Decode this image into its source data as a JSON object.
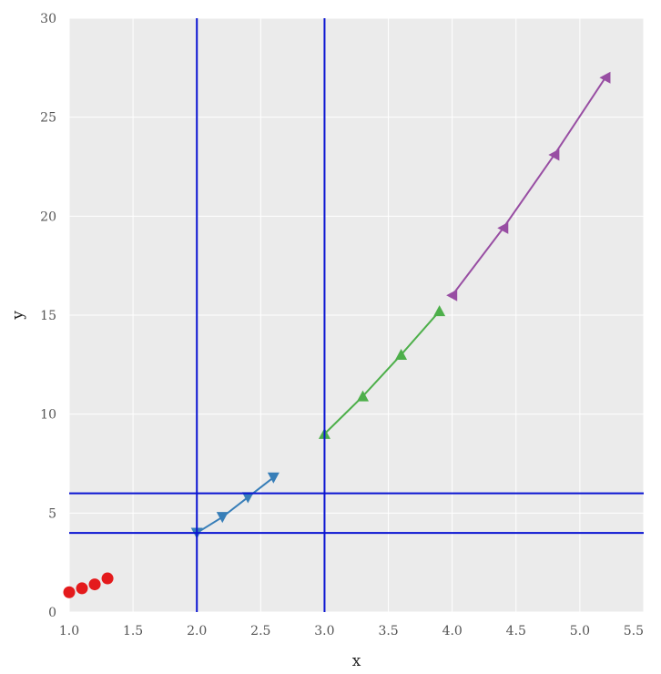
{
  "chart_data": {
    "type": "line",
    "title": "",
    "xlabel": "x",
    "ylabel": "y",
    "xlim": [
      1.0,
      5.5
    ],
    "ylim": [
      0,
      30
    ],
    "xticks": [
      "1.0",
      "1.5",
      "2.0",
      "2.5",
      "3.0",
      "3.5",
      "4.0",
      "4.5",
      "5.0",
      "5.5"
    ],
    "yticks": [
      "0",
      "5",
      "10",
      "15",
      "20",
      "25",
      "30"
    ],
    "grid": true,
    "background": "#ebebeb",
    "series": [
      {
        "color": "#e41a1c",
        "marker": "circle",
        "line": false,
        "x": [
          1.0,
          1.1,
          1.2,
          1.3
        ],
        "y": [
          1.0,
          1.2,
          1.4,
          1.7
        ]
      },
      {
        "color": "#377eb8",
        "marker": "triangle-down",
        "line": true,
        "x": [
          2.0,
          2.2,
          2.4,
          2.6
        ],
        "y": [
          4.0,
          4.8,
          5.8,
          6.8
        ]
      },
      {
        "color": "#4daf4a",
        "marker": "triangle-up",
        "line": true,
        "x": [
          3.0,
          3.3,
          3.6,
          3.9
        ],
        "y": [
          9.0,
          10.9,
          13.0,
          15.2
        ]
      },
      {
        "color": "#984ea3",
        "marker": "triangle-left",
        "line": true,
        "x": [
          4.0,
          4.4,
          4.8,
          5.2
        ],
        "y": [
          16.0,
          19.4,
          23.1,
          27.0
        ]
      }
    ],
    "reference_lines": {
      "color": "#0a14d2",
      "vertical_x": [
        2.0,
        3.0
      ],
      "horizontal_y": [
        4.0,
        6.0
      ]
    }
  }
}
